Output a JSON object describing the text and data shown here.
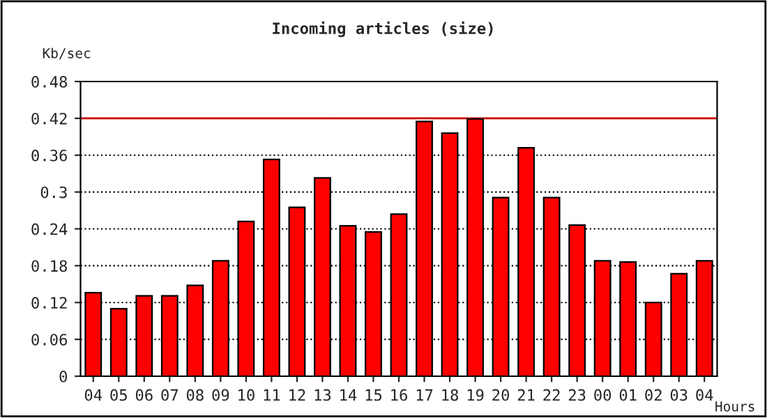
{
  "chart_data": {
    "type": "bar",
    "title": "Incoming articles (size)",
    "xlabel": "Hours",
    "ylabel": "Kb/sec",
    "categories": [
      "04",
      "05",
      "06",
      "07",
      "08",
      "09",
      "10",
      "11",
      "12",
      "13",
      "14",
      "15",
      "16",
      "17",
      "18",
      "19",
      "20",
      "21",
      "22",
      "23",
      "00",
      "01",
      "02",
      "03",
      "04"
    ],
    "values": [
      0.136,
      0.11,
      0.131,
      0.131,
      0.148,
      0.188,
      0.252,
      0.353,
      0.275,
      0.323,
      0.245,
      0.235,
      0.264,
      0.415,
      0.396,
      0.419,
      0.291,
      0.372,
      0.291,
      0.246,
      0.188,
      0.186,
      0.12,
      0.167,
      0.188
    ],
    "color": "#ff0000",
    "ylim": [
      0,
      0.48
    ],
    "yticks": [
      0,
      0.06,
      0.12,
      0.18,
      0.24,
      0.3,
      0.36,
      0.42,
      0.48
    ],
    "grid": "y",
    "line_style": "dotted",
    "ref_lines": [
      {
        "axis": "y",
        "value": 0.42,
        "color": "#cc0000"
      }
    ]
  }
}
